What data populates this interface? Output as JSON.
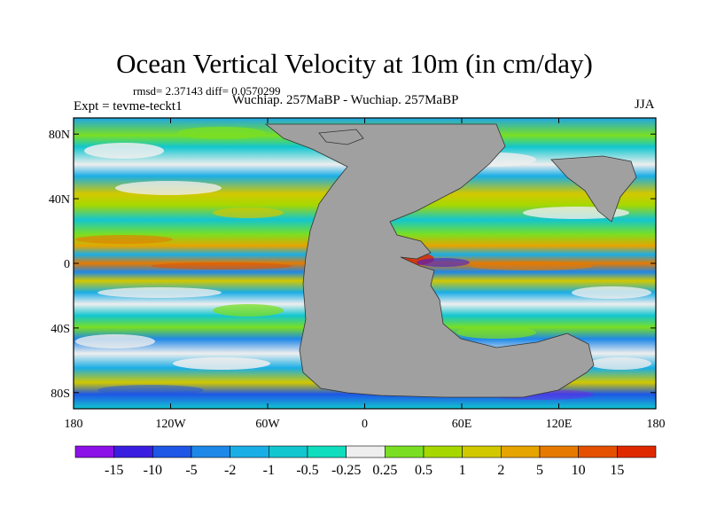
{
  "chart_data": {
    "type": "heatmap",
    "title": "Ocean Vertical Velocity at 10m (in cm/day)",
    "stats_text": "rmsd= 2.37143 diff= 0.0570299",
    "left_subtitle": "Expt = tevme-teckt1",
    "center_subtitle": "Wuchiap. 257MaBP - Wuchiap. 257MaBP",
    "right_subtitle": "JJA",
    "x_ticks": [
      "180",
      "120W",
      "60W",
      "0",
      "60E",
      "120E",
      "180"
    ],
    "x_tick_values": [
      -180,
      -120,
      -60,
      0,
      60,
      120,
      180
    ],
    "y_ticks": [
      "80N",
      "40N",
      "0",
      "40S",
      "80S"
    ],
    "y_tick_values": [
      80,
      40,
      0,
      -40,
      -80
    ],
    "xlim": [
      -180,
      180
    ],
    "ylim": [
      -90,
      90
    ],
    "colorbar": {
      "labels": [
        "-15",
        "-10",
        "-5",
        "-2",
        "-1",
        "-0.5",
        "-0.25",
        "0.25",
        "0.5",
        "1",
        "2",
        "5",
        "10",
        "15"
      ],
      "colors": [
        "#8C10E8",
        "#3A1EE0",
        "#1E56E6",
        "#1E88E8",
        "#1AAEE6",
        "#12C6D0",
        "#0EDDBE",
        "#EEEEEE",
        "#7ADF22",
        "#A6D800",
        "#D2C800",
        "#E6A400",
        "#E67A00",
        "#E45000",
        "#E02800"
      ]
    },
    "land_color": "#A0A0A0"
  }
}
